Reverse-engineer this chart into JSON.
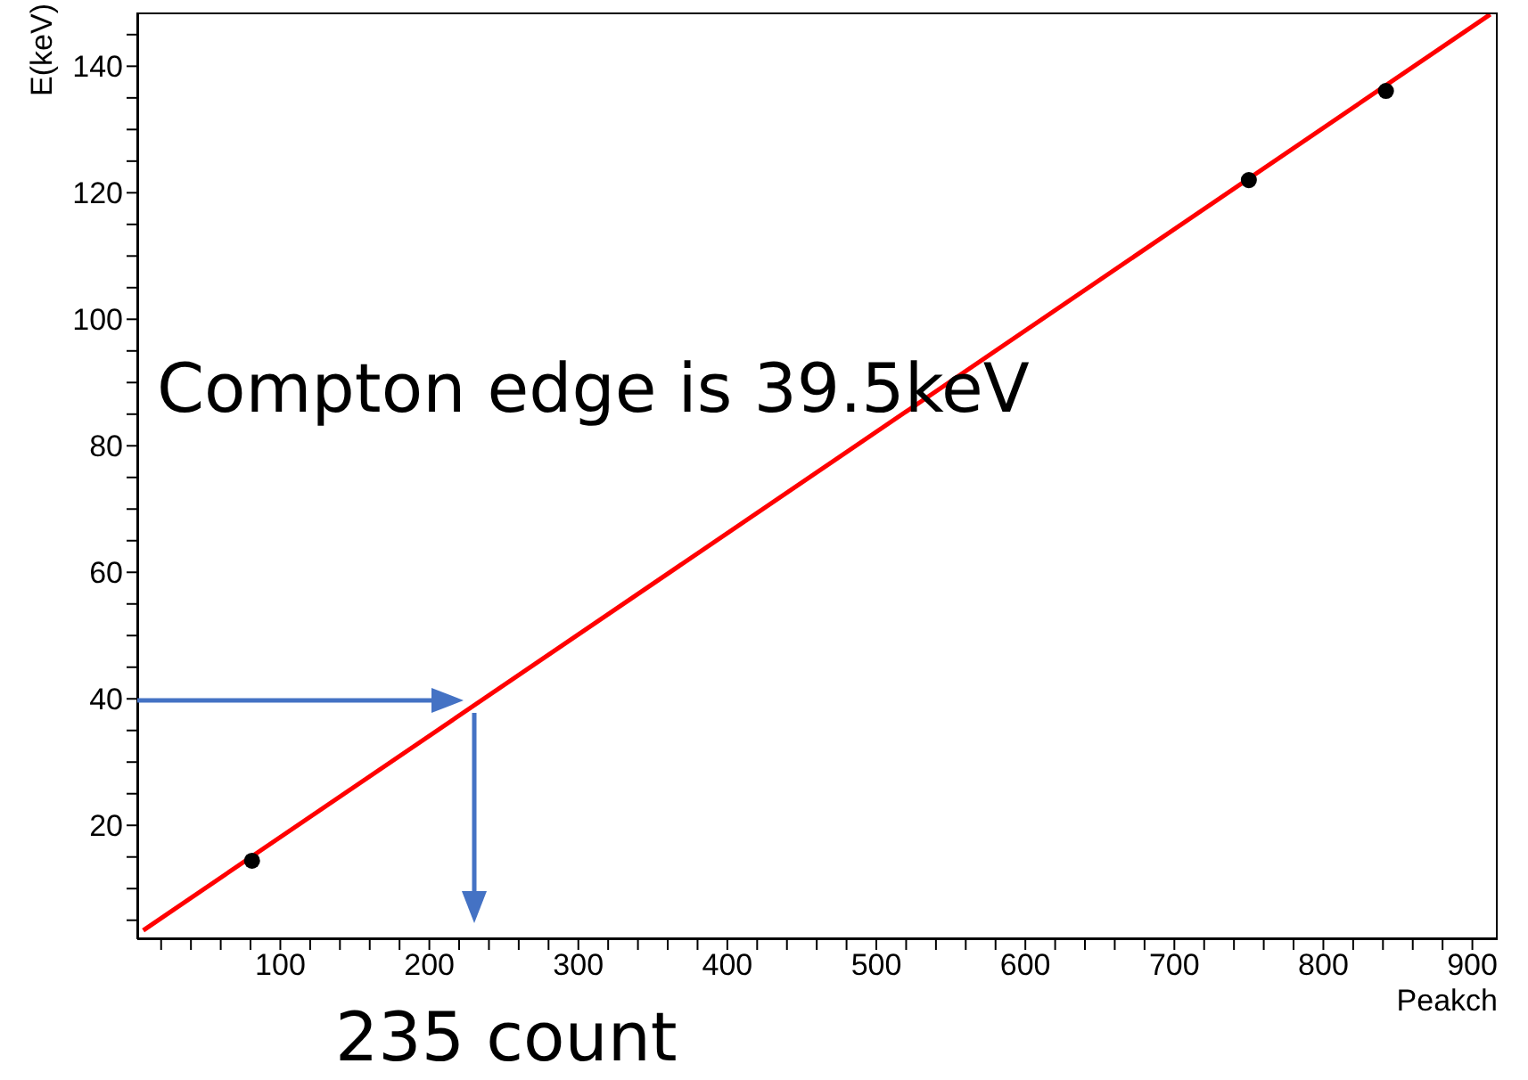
{
  "chart_data": {
    "type": "scatter",
    "xlabel": "Peakch",
    "ylabel": "E(keV)",
    "xlim": [
      4,
      917
    ],
    "ylim": [
      2,
      148.5
    ],
    "xticks": [
      {
        "value": 20,
        "label": null
      },
      {
        "value": 40,
        "label": null
      },
      {
        "value": 60,
        "label": null
      },
      {
        "value": 80,
        "label": null
      },
      100,
      {
        "value": 120,
        "label": null
      },
      {
        "value": 140,
        "label": null
      },
      {
        "value": 160,
        "label": null
      },
      {
        "value": 180,
        "label": null
      },
      200,
      {
        "value": 220,
        "label": null
      },
      {
        "value": 240,
        "label": null
      },
      {
        "value": 260,
        "label": null
      },
      {
        "value": 280,
        "label": null
      },
      300,
      {
        "value": 320,
        "label": null
      },
      {
        "value": 340,
        "label": null
      },
      {
        "value": 360,
        "label": null
      },
      {
        "value": 380,
        "label": null
      },
      400,
      {
        "value": 420,
        "label": null
      },
      {
        "value": 440,
        "label": null
      },
      {
        "value": 460,
        "label": null
      },
      {
        "value": 480,
        "label": null
      },
      500,
      {
        "value": 520,
        "label": null
      },
      {
        "value": 540,
        "label": null
      },
      {
        "value": 560,
        "label": null
      },
      {
        "value": 580,
        "label": null
      },
      600,
      {
        "value": 620,
        "label": null
      },
      {
        "value": 640,
        "label": null
      },
      {
        "value": 660,
        "label": null
      },
      {
        "value": 680,
        "label": null
      },
      700,
      {
        "value": 720,
        "label": null
      },
      {
        "value": 740,
        "label": null
      },
      {
        "value": 760,
        "label": null
      },
      {
        "value": 780,
        "label": null
      },
      800,
      {
        "value": 820,
        "label": null
      },
      {
        "value": 840,
        "label": null
      },
      {
        "value": 860,
        "label": null
      },
      {
        "value": 880,
        "label": null
      },
      900
    ],
    "yticks": [
      {
        "value": 5,
        "label": null
      },
      {
        "value": 10,
        "label": null
      },
      {
        "value": 15,
        "label": null
      },
      20,
      {
        "value": 25,
        "label": null
      },
      {
        "value": 30,
        "label": null
      },
      {
        "value": 35,
        "label": null
      },
      40,
      {
        "value": 45,
        "label": null
      },
      {
        "value": 50,
        "label": null
      },
      {
        "value": 55,
        "label": null
      },
      60,
      {
        "value": 65,
        "label": null
      },
      {
        "value": 70,
        "label": null
      },
      {
        "value": 75,
        "label": null
      },
      80,
      {
        "value": 85,
        "label": null
      },
      {
        "value": 90,
        "label": null
      },
      {
        "value": 95,
        "label": null
      },
      100,
      {
        "value": 105,
        "label": null
      },
      {
        "value": 110,
        "label": null
      },
      {
        "value": 115,
        "label": null
      },
      120,
      {
        "value": 125,
        "label": null
      },
      {
        "value": 130,
        "label": null
      },
      {
        "value": 135,
        "label": null
      },
      140,
      {
        "value": 145,
        "label": null
      }
    ],
    "series": [
      {
        "color": "#000000",
        "marker": "circle",
        "x": [
          81,
          750,
          842
        ],
        "values": [
          14.4,
          122,
          136.1
        ]
      },
      {
        "type": "line",
        "color": "#ff0000",
        "x": [
          8,
          912
        ],
        "values": [
          3.4,
          148.2
        ]
      }
    ],
    "annotations": [
      "Compton edge is 39.5keV",
      "235 count"
    ]
  }
}
